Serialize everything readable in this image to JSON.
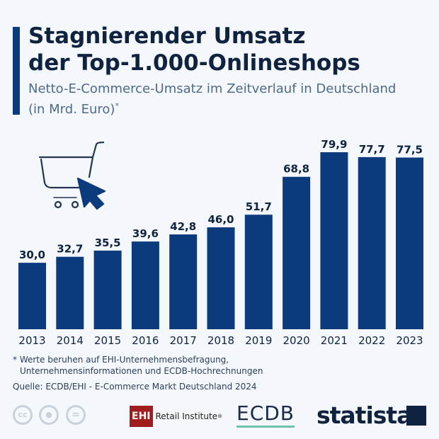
{
  "header": {
    "title_line1": "Stagnierender Umsatz",
    "title_line2": "der Top-1.000-Onlineshops",
    "subtitle_line1": "Netto-E-Commerce-Umsatz im Zeitverlauf in Deutschland",
    "subtitle_line2": "(in Mrd. Euro)",
    "subtitle_mark": "*"
  },
  "chart_data": {
    "type": "bar",
    "categories": [
      "2013",
      "2014",
      "2015",
      "2016",
      "2017",
      "2018",
      "2019",
      "2020",
      "2021",
      "2022",
      "2023"
    ],
    "values": [
      30.0,
      32.7,
      35.5,
      39.6,
      42.8,
      46.0,
      51.7,
      68.8,
      79.9,
      77.7,
      77.5
    ],
    "labels": [
      "30,0",
      "32,7",
      "35,5",
      "39,6",
      "42,8",
      "46,0",
      "51,7",
      "68,8",
      "79,9",
      "77,7",
      "77,5"
    ],
    "ylim": [
      0,
      80
    ],
    "grid": false,
    "color": "#0b3a7d"
  },
  "icons": {
    "illustration": "shopping-cart-with-cursor-icon"
  },
  "notes": {
    "line1": "* Werte beruhen auf EHI-Unternehmensbefragung,",
    "line2": "Unternehmensinformationen und ECDB-Hochrechnungen",
    "source": "Quelle: ECDB/EHI - E-Commerce Markt Deutschland 2024"
  },
  "footer": {
    "cc": "cc",
    "ehi_box": "EHI",
    "ehi_text": "Retail Institute",
    "ehi_reg": "®",
    "ecdb": "ECDB",
    "statista": "statista"
  }
}
